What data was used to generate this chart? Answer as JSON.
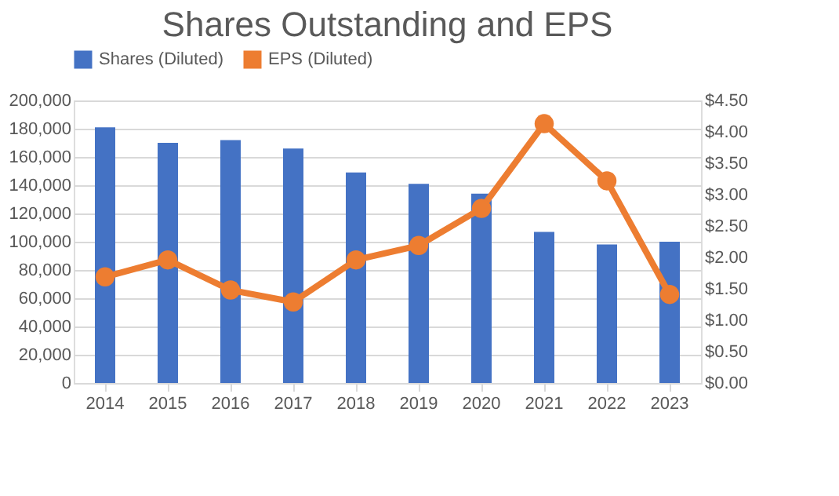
{
  "chart_data": {
    "type": "bar",
    "title": "Shares Outstanding and EPS",
    "categories": [
      "2014",
      "2015",
      "2016",
      "2017",
      "2018",
      "2019",
      "2020",
      "2021",
      "2022",
      "2023"
    ],
    "series": [
      {
        "name": "Shares (Diluted)",
        "color": "#4472c4",
        "values": [
          181000,
          170000,
          172000,
          166000,
          149000,
          141000,
          134000,
          107000,
          98000,
          100000
        ]
      },
      {
        "name": "EPS (Diluted)",
        "type": "line",
        "axis": "y2",
        "color": "#ed7d31",
        "marker": "circle",
        "values": [
          1.69,
          1.96,
          1.48,
          1.29,
          1.96,
          2.19,
          2.78,
          4.13,
          3.22,
          1.41
        ]
      }
    ],
    "ylim": [
      0,
      200000
    ],
    "yticks": [
      {
        "value": 0,
        "label": "0"
      },
      {
        "value": 20000,
        "label": "20,000"
      },
      {
        "value": 40000,
        "label": "40,000"
      },
      {
        "value": 60000,
        "label": "60,000"
      },
      {
        "value": 80000,
        "label": "80,000"
      },
      {
        "value": 100000,
        "label": "100,000"
      },
      {
        "value": 120000,
        "label": "120,000"
      },
      {
        "value": 140000,
        "label": "140,000"
      },
      {
        "value": 160000,
        "label": "160,000"
      },
      {
        "value": 180000,
        "label": "180,000"
      },
      {
        "value": 200000,
        "label": "200,000"
      }
    ],
    "y2lim": [
      0,
      4.5
    ],
    "y2ticks": [
      {
        "value": 0,
        "label": "$0.00"
      },
      {
        "value": 0.5,
        "label": "$0.50"
      },
      {
        "value": 1,
        "label": "$1.00"
      },
      {
        "value": 1.5,
        "label": "$1.50"
      },
      {
        "value": 2,
        "label": "$2.00"
      },
      {
        "value": 2.5,
        "label": "$2.50"
      },
      {
        "value": 3,
        "label": "$3.00"
      },
      {
        "value": 3.5,
        "label": "$3.50"
      },
      {
        "value": 4,
        "label": "$4.00"
      },
      {
        "value": 4.5,
        "label": "$4.50"
      }
    ],
    "grid": "y",
    "legend": "top"
  }
}
